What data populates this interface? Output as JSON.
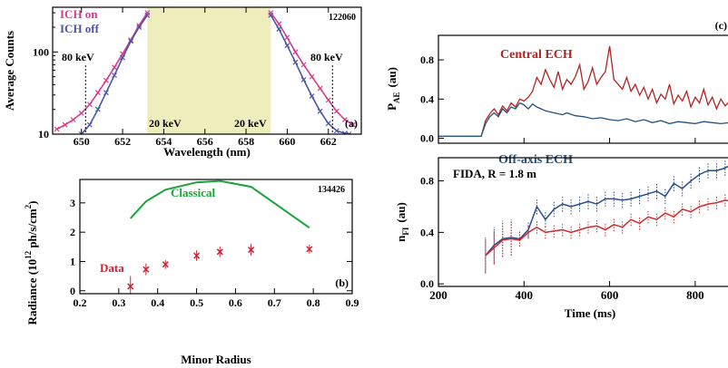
{
  "chart_data": [
    {
      "panel": "a",
      "type": "line",
      "panel_label": "(a)",
      "shot_number": "122060",
      "xlabel": "Wavelength (nm)",
      "ylabel": "Average Counts",
      "xlim": [
        648.6,
        663.6
      ],
      "ylim": [
        10,
        350
      ],
      "y_scale": "log",
      "x_ticks": [
        650,
        652,
        654,
        656,
        658,
        660,
        662
      ],
      "y_ticks": [
        10,
        100
      ],
      "legend": [
        "ICH on",
        "ICH off"
      ],
      "shaded_region": [
        653.2,
        659.2
      ],
      "annotations": [
        "80 keV",
        "20 keV",
        "20 keV",
        "80 keV"
      ],
      "marker_lines": [
        650.2,
        662.2
      ],
      "series": [
        {
          "name": "ICH on",
          "color": "#d83a8c",
          "segments": [
            {
              "x": [
                648.8,
                649.2,
                649.6,
                650.0,
                650.4,
                650.8,
                651.2,
                651.6,
                652.0,
                652.4,
                652.8,
                653.2
              ],
              "y": [
                11.5,
                13,
                15,
                18,
                23,
                32,
                45,
                65,
                95,
                140,
                210,
                300
              ]
            },
            {
              "x": [
                659.2,
                659.6,
                660.0,
                660.4,
                660.8,
                661.2,
                661.6,
                662.0,
                662.4,
                662.8,
                663.2
              ],
              "y": [
                300,
                220,
                150,
                100,
                70,
                50,
                36,
                26,
                19,
                15,
                13
              ]
            }
          ]
        },
        {
          "name": "ICH off",
          "color": "#4a55a8",
          "segments": [
            {
              "x": [
                650.0,
                650.4,
                650.8,
                651.2,
                651.6,
                652.0,
                652.4,
                652.8,
                653.2
              ],
              "y": [
                10,
                13,
                20,
                32,
                52,
                85,
                135,
                200,
                280
              ]
            },
            {
              "x": [
                659.2,
                659.6,
                660.0,
                660.4,
                660.8,
                661.2,
                661.6,
                662.0,
                662.4,
                662.8,
                663.0
              ],
              "y": [
                280,
                190,
                120,
                75,
                46,
                29,
                19,
                13.5,
                11,
                10.2,
                10
              ]
            }
          ]
        }
      ]
    },
    {
      "panel": "b",
      "type": "scatter",
      "panel_label": "(b)",
      "shot_number": "134426",
      "xlabel": "Minor Radius",
      "ylabel": "Radiance (10^12 ph/s/cm^2)",
      "ylabel_parts": [
        "Radiance (10",
        "12",
        " ph/s/cm",
        "2",
        ")"
      ],
      "xlim": [
        0.2,
        0.9
      ],
      "ylim": [
        -0.1,
        3.8
      ],
      "x_ticks": [
        0.2,
        0.3,
        0.4,
        0.5,
        0.6,
        0.7,
        0.8,
        0.9
      ],
      "y_ticks": [
        0,
        1,
        2,
        3
      ],
      "series": [
        {
          "name": "Data",
          "color": "#cc2233",
          "x": [
            0.33,
            0.37,
            0.42,
            0.5,
            0.56,
            0.64,
            0.79
          ],
          "y": [
            0.15,
            0.73,
            0.9,
            1.2,
            1.33,
            1.4,
            1.42
          ],
          "err": [
            0.35,
            0.2,
            0.15,
            0.18,
            0.18,
            0.2,
            0.15
          ]
        },
        {
          "name": "Classical",
          "color": "#1aa33a",
          "x": [
            0.33,
            0.37,
            0.42,
            0.5,
            0.56,
            0.64,
            0.79
          ],
          "y": [
            2.47,
            3.05,
            3.45,
            3.7,
            3.75,
            3.55,
            2.15
          ]
        }
      ]
    },
    {
      "panel": "c",
      "type": "line",
      "panel_label": "(c)",
      "ylabel_main": "P",
      "ylabel_sub": "AE",
      "ylabel_unit": "(au)",
      "xlim": [
        200,
        900
      ],
      "ylim": [
        -0.05,
        1.05
      ],
      "y_ticks": [
        0.0,
        0.4,
        0.8
      ],
      "y_tick_labels": [
        "0.0",
        "0.4",
        "0.8"
      ],
      "series": [
        {
          "name": "Central ECH",
          "color": "#b02424",
          "x": [
            200,
            300,
            310,
            320,
            330,
            340,
            350,
            360,
            370,
            380,
            390,
            400,
            410,
            420,
            430,
            440,
            450,
            460,
            470,
            480,
            490,
            500,
            510,
            520,
            530,
            540,
            550,
            560,
            570,
            580,
            590,
            600,
            610,
            620,
            630,
            640,
            650,
            660,
            670,
            680,
            690,
            700,
            710,
            720,
            730,
            740,
            750,
            760,
            770,
            780,
            790,
            800,
            810,
            820,
            830,
            840,
            850,
            860,
            870,
            880,
            890,
            900
          ],
          "y": [
            0.02,
            0.02,
            0.18,
            0.25,
            0.3,
            0.24,
            0.33,
            0.28,
            0.36,
            0.32,
            0.4,
            0.38,
            0.42,
            0.48,
            0.62,
            0.55,
            0.7,
            0.6,
            0.52,
            0.68,
            0.5,
            0.6,
            0.55,
            0.63,
            0.75,
            0.5,
            0.58,
            0.72,
            0.55,
            0.62,
            0.68,
            0.94,
            0.6,
            0.55,
            0.5,
            0.62,
            0.48,
            0.55,
            0.44,
            0.52,
            0.4,
            0.5,
            0.36,
            0.45,
            0.4,
            0.55,
            0.35,
            0.44,
            0.38,
            0.48,
            0.32,
            0.42,
            0.36,
            0.5,
            0.34,
            0.42,
            0.3,
            0.4,
            0.33,
            0.38,
            0.3,
            0.32
          ]
        },
        {
          "name": "Off-axis ECH",
          "color": "#24517e",
          "x": [
            200,
            300,
            310,
            320,
            330,
            340,
            350,
            360,
            370,
            380,
            390,
            400,
            410,
            420,
            430,
            440,
            450,
            460,
            470,
            480,
            490,
            500,
            520,
            540,
            560,
            580,
            600,
            620,
            640,
            660,
            680,
            700,
            720,
            740,
            760,
            780,
            800,
            820,
            840,
            860,
            880,
            900
          ],
          "y": [
            0.02,
            0.02,
            0.15,
            0.22,
            0.26,
            0.22,
            0.3,
            0.26,
            0.32,
            0.3,
            0.36,
            0.34,
            0.3,
            0.35,
            0.32,
            0.3,
            0.28,
            0.27,
            0.26,
            0.25,
            0.24,
            0.26,
            0.23,
            0.22,
            0.2,
            0.21,
            0.19,
            0.18,
            0.2,
            0.17,
            0.19,
            0.16,
            0.18,
            0.15,
            0.17,
            0.16,
            0.15,
            0.17,
            0.16,
            0.15,
            0.16,
            0.15
          ]
        }
      ]
    },
    {
      "panel": "d",
      "type": "line",
      "title": "FIDA, R = 1.8 m",
      "xlabel": "Time (ms)",
      "ylabel_main": "n",
      "ylabel_sub": "FI",
      "ylabel_unit": "(au)",
      "xlim": [
        200,
        900
      ],
      "ylim": [
        -0.02,
        0.98
      ],
      "x_ticks": [
        200,
        400,
        600,
        800
      ],
      "y_ticks": [
        0.0,
        0.4,
        0.8
      ],
      "y_tick_labels": [
        "0.0",
        "0.4",
        "0.8"
      ],
      "series": [
        {
          "name": "blue",
          "color": "#2a4f86",
          "x": [
            310,
            330,
            350,
            370,
            390,
            410,
            430,
            450,
            470,
            490,
            510,
            530,
            550,
            570,
            590,
            610,
            630,
            650,
            670,
            690,
            710,
            730,
            750,
            770,
            790,
            810,
            830,
            850,
            870,
            890,
            900
          ],
          "y": [
            0.22,
            0.3,
            0.35,
            0.36,
            0.35,
            0.42,
            0.6,
            0.5,
            0.58,
            0.62,
            0.6,
            0.62,
            0.64,
            0.62,
            0.66,
            0.66,
            0.65,
            0.66,
            0.68,
            0.7,
            0.72,
            0.68,
            0.78,
            0.74,
            0.8,
            0.85,
            0.88,
            0.88,
            0.9,
            0.94,
            0.95
          ]
        },
        {
          "name": "red",
          "color": "#cc2a2a",
          "x": [
            310,
            330,
            350,
            370,
            390,
            410,
            430,
            450,
            470,
            490,
            510,
            530,
            550,
            570,
            590,
            610,
            630,
            650,
            670,
            690,
            710,
            730,
            750,
            770,
            790,
            810,
            830,
            850,
            870,
            890,
            900
          ],
          "y": [
            0.22,
            0.28,
            0.34,
            0.35,
            0.34,
            0.4,
            0.44,
            0.4,
            0.41,
            0.42,
            0.4,
            0.42,
            0.44,
            0.45,
            0.42,
            0.46,
            0.44,
            0.5,
            0.47,
            0.52,
            0.5,
            0.55,
            0.52,
            0.58,
            0.56,
            0.6,
            0.62,
            0.63,
            0.65,
            0.64,
            0.62
          ]
        }
      ]
    }
  ]
}
